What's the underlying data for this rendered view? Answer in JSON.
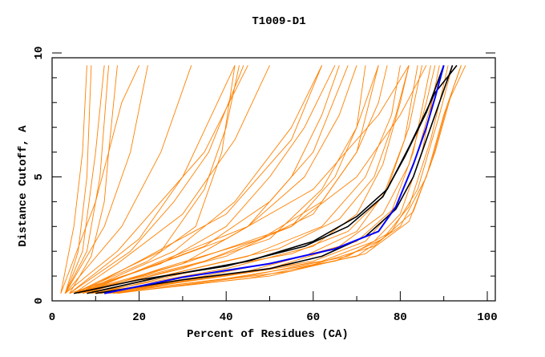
{
  "chart_data": {
    "type": "line",
    "title": "T1009-D1",
    "xlabel": "Percent of Residues (CA)",
    "ylabel": "Distance Cutoff, A",
    "xlim": [
      0,
      100
    ],
    "ylim": [
      0,
      10
    ],
    "xticks": [
      "0",
      "20",
      "40",
      "60",
      "80",
      "100"
    ],
    "yticks": [
      "0",
      "5",
      "10"
    ],
    "grid": false,
    "colors": {
      "models": "#ff8000",
      "highlight": "#0000ff",
      "reference": "#000000"
    },
    "highlight_series": [
      [
        [
          12,
          0.3
        ],
        [
          30,
          0.95
        ],
        [
          50,
          1.5
        ],
        [
          65,
          2.1
        ],
        [
          75,
          2.8
        ],
        [
          79,
          3.8
        ],
        [
          83,
          5.5
        ],
        [
          86,
          7
        ],
        [
          88,
          8.2
        ],
        [
          90,
          9.5
        ]
      ]
    ],
    "reference_series": [
      [
        [
          5,
          0.3
        ],
        [
          20,
          0.85
        ],
        [
          40,
          1.4
        ],
        [
          58,
          2.2
        ],
        [
          68,
          3
        ],
        [
          76,
          4.2
        ],
        [
          81,
          5.8
        ],
        [
          86,
          7.6
        ],
        [
          90,
          9.5
        ]
      ],
      [
        [
          10,
          0.3
        ],
        [
          30,
          0.85
        ],
        [
          50,
          1.3
        ],
        [
          62,
          1.8
        ],
        [
          72,
          2.6
        ],
        [
          79,
          3.7
        ],
        [
          83,
          5
        ],
        [
          87,
          7
        ],
        [
          92,
          9.5
        ]
      ],
      [
        [
          8,
          0.3
        ],
        [
          26,
          1
        ],
        [
          45,
          1.6
        ],
        [
          60,
          2.4
        ],
        [
          70,
          3.4
        ],
        [
          77,
          4.5
        ],
        [
          82,
          6.2
        ],
        [
          88,
          8.4
        ],
        [
          93,
          9.5
        ]
      ]
    ],
    "model_series": [
      [
        [
          2,
          0.3
        ],
        [
          5,
          3
        ],
        [
          7,
          6
        ],
        [
          8,
          9.5
        ]
      ],
      [
        [
          3,
          0.3
        ],
        [
          6,
          2
        ],
        [
          8,
          5
        ],
        [
          9,
          9.5
        ]
      ],
      [
        [
          3,
          0.3
        ],
        [
          7,
          2
        ],
        [
          10,
          6
        ],
        [
          12,
          9.5
        ]
      ],
      [
        [
          3,
          0.3
        ],
        [
          8,
          2
        ],
        [
          11,
          5
        ],
        [
          13,
          9.5
        ]
      ],
      [
        [
          4,
          0.3
        ],
        [
          9,
          1.8
        ],
        [
          12,
          4
        ],
        [
          13,
          6
        ],
        [
          15,
          9.5
        ]
      ],
      [
        [
          2,
          0.3
        ],
        [
          10,
          4
        ],
        [
          16,
          8
        ],
        [
          20,
          9.5
        ]
      ],
      [
        [
          3,
          0.3
        ],
        [
          12,
          3
        ],
        [
          18,
          6
        ],
        [
          22,
          9.5
        ]
      ],
      [
        [
          3,
          0.3
        ],
        [
          15,
          2
        ],
        [
          25,
          4
        ],
        [
          35,
          6
        ],
        [
          45,
          9.5
        ]
      ],
      [
        [
          4,
          0.3
        ],
        [
          18,
          2
        ],
        [
          28,
          4
        ],
        [
          36,
          6
        ],
        [
          44,
          9.5
        ]
      ],
      [
        [
          5,
          0.3
        ],
        [
          22,
          1.6
        ],
        [
          33,
          3
        ],
        [
          39,
          6
        ],
        [
          42,
          9.5
        ]
      ],
      [
        [
          4,
          0.3
        ],
        [
          20,
          2.5
        ],
        [
          30,
          5
        ],
        [
          38,
          8
        ],
        [
          42,
          9.5
        ]
      ],
      [
        [
          5,
          0.3
        ],
        [
          25,
          2
        ],
        [
          35,
          4.5
        ],
        [
          40,
          7
        ],
        [
          43,
          9.5
        ]
      ],
      [
        [
          3,
          0.3
        ],
        [
          16,
          3
        ],
        [
          25,
          6
        ],
        [
          32,
          9.5
        ]
      ],
      [
        [
          4,
          0.3
        ],
        [
          25,
          1.5
        ],
        [
          40,
          3
        ],
        [
          50,
          5
        ],
        [
          58,
          7
        ],
        [
          65,
          9.5
        ]
      ],
      [
        [
          5,
          0.3
        ],
        [
          30,
          1.5
        ],
        [
          45,
          3
        ],
        [
          55,
          5
        ],
        [
          62,
          7.5
        ],
        [
          66,
          9.5
        ]
      ],
      [
        [
          6,
          0.3
        ],
        [
          28,
          2
        ],
        [
          42,
          4
        ],
        [
          55,
          7
        ],
        [
          62,
          9.5
        ]
      ],
      [
        [
          5,
          0.3
        ],
        [
          35,
          1.6
        ],
        [
          55,
          3
        ],
        [
          65,
          5
        ],
        [
          70,
          7
        ],
        [
          72,
          9.5
        ]
      ],
      [
        [
          6,
          0.3
        ],
        [
          30,
          1.3
        ],
        [
          50,
          2.5
        ],
        [
          62,
          4.5
        ],
        [
          70,
          7
        ],
        [
          75,
          9.5
        ]
      ],
      [
        [
          7,
          0.3
        ],
        [
          40,
          1.8
        ],
        [
          60,
          3.5
        ],
        [
          70,
          6
        ],
        [
          75,
          8
        ],
        [
          77,
          9.5
        ]
      ],
      [
        [
          6,
          0.3
        ],
        [
          35,
          2.2
        ],
        [
          50,
          4
        ],
        [
          60,
          6
        ],
        [
          68,
          9.5
        ]
      ],
      [
        [
          8,
          0.3
        ],
        [
          45,
          1.8
        ],
        [
          62,
          3
        ],
        [
          72,
          5
        ],
        [
          78,
          7.5
        ],
        [
          80,
          9.5
        ]
      ],
      [
        [
          8,
          0.3
        ],
        [
          40,
          1.3
        ],
        [
          60,
          2.2
        ],
        [
          70,
          3.5
        ],
        [
          76,
          5.5
        ],
        [
          80,
          8
        ],
        [
          82,
          9.5
        ]
      ],
      [
        [
          9,
          0.3
        ],
        [
          35,
          1
        ],
        [
          58,
          1.8
        ],
        [
          70,
          2.8
        ],
        [
          77,
          4.5
        ],
        [
          82,
          7
        ],
        [
          85,
          9.5
        ]
      ],
      [
        [
          10,
          0.3
        ],
        [
          35,
          0.9
        ],
        [
          60,
          1.6
        ],
        [
          72,
          2.4
        ],
        [
          78,
          3.6
        ],
        [
          83,
          6
        ],
        [
          87,
          9.5
        ]
      ],
      [
        [
          11,
          0.3
        ],
        [
          40,
          1
        ],
        [
          62,
          1.6
        ],
        [
          74,
          2.4
        ],
        [
          80,
          3.5
        ],
        [
          85,
          6
        ],
        [
          89,
          9.5
        ]
      ],
      [
        [
          12,
          0.3
        ],
        [
          40,
          0.9
        ],
        [
          65,
          1.6
        ],
        [
          76,
          2.5
        ],
        [
          82,
          3.8
        ],
        [
          87,
          6.5
        ],
        [
          91,
          9.5
        ]
      ],
      [
        [
          12,
          0.3
        ],
        [
          45,
          1
        ],
        [
          68,
          1.8
        ],
        [
          78,
          2.8
        ],
        [
          84,
          4.5
        ],
        [
          89,
          7.5
        ],
        [
          92,
          9.5
        ]
      ],
      [
        [
          13,
          0.3
        ],
        [
          45,
          0.9
        ],
        [
          70,
          1.8
        ],
        [
          80,
          3
        ],
        [
          86,
          5
        ],
        [
          90,
          7.5
        ],
        [
          94,
          9.5
        ]
      ],
      [
        [
          14,
          0.3
        ],
        [
          50,
          1
        ],
        [
          72,
          1.9
        ],
        [
          82,
          3.2
        ],
        [
          87,
          5.5
        ],
        [
          91,
          8
        ],
        [
          95,
          9.5
        ]
      ],
      [
        [
          10,
          0.3
        ],
        [
          30,
          1.1
        ],
        [
          55,
          1.9
        ],
        [
          68,
          2.8
        ],
        [
          76,
          4.2
        ],
        [
          81,
          6.5
        ],
        [
          84,
          9.5
        ]
      ],
      [
        [
          9,
          0.3
        ],
        [
          30,
          1.2
        ],
        [
          52,
          2.1
        ],
        [
          66,
          3.3
        ],
        [
          74,
          5
        ],
        [
          79,
          7.5
        ],
        [
          82,
          9.5
        ]
      ],
      [
        [
          8,
          0.3
        ],
        [
          25,
          1.3
        ],
        [
          48,
          2.5
        ],
        [
          62,
          4
        ],
        [
          70,
          6
        ],
        [
          75,
          9.5
        ]
      ],
      [
        [
          7,
          0.3
        ],
        [
          25,
          1.6
        ],
        [
          45,
          3
        ],
        [
          58,
          5
        ],
        [
          66,
          7.5
        ],
        [
          70,
          9.5
        ]
      ],
      [
        [
          6,
          0.3
        ],
        [
          20,
          1.6
        ],
        [
          40,
          3.5
        ],
        [
          55,
          6.5
        ],
        [
          62,
          9.5
        ]
      ],
      [
        [
          5,
          0.3
        ],
        [
          15,
          1.5
        ],
        [
          30,
          3.5
        ],
        [
          42,
          6.5
        ],
        [
          50,
          9.5
        ]
      ],
      [
        [
          5,
          0.3
        ],
        [
          20,
          1.2
        ],
        [
          40,
          2.5
        ],
        [
          60,
          4.5
        ],
        [
          75,
          7.5
        ],
        [
          82,
          9.5
        ]
      ],
      [
        [
          7,
          0.3
        ],
        [
          30,
          1.5
        ],
        [
          55,
          3
        ],
        [
          70,
          5
        ],
        [
          80,
          7.5
        ],
        [
          86,
          9.5
        ]
      ],
      [
        [
          11,
          0.3
        ],
        [
          45,
          1.2
        ],
        [
          66,
          2.2
        ],
        [
          76,
          3.5
        ],
        [
          82,
          5.5
        ],
        [
          86,
          8
        ],
        [
          88,
          9.5
        ]
      ],
      [
        [
          13,
          0.3
        ],
        [
          50,
          1.3
        ],
        [
          70,
          2.4
        ],
        [
          79,
          3.8
        ],
        [
          84,
          6
        ],
        [
          88,
          8.5
        ],
        [
          90,
          9.5
        ]
      ],
      [
        [
          15,
          0.3
        ],
        [
          55,
          1.2
        ],
        [
          74,
          2.2
        ],
        [
          83,
          3.6
        ],
        [
          88,
          6
        ],
        [
          92,
          8.5
        ],
        [
          94,
          9.5
        ]
      ]
    ]
  }
}
